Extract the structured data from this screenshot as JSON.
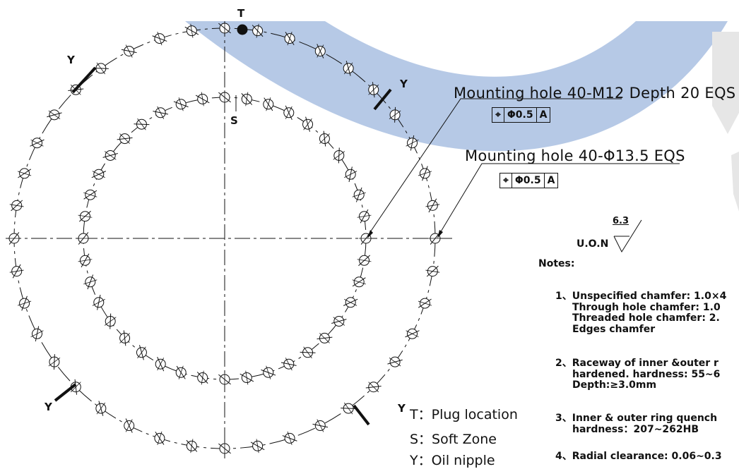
{
  "markers": {
    "plug": "T",
    "soft": "S",
    "nipple": "Y"
  },
  "callouts": [
    {
      "text": "Mounting hole 40-M12 Depth 20 EQS",
      "fcf": {
        "symbol": "⌖",
        "tolerance": "Φ0.5",
        "datum": "A"
      }
    },
    {
      "text": "Mounting hole 40-Φ13.5 EQS",
      "fcf": {
        "symbol": "⌖",
        "tolerance": "Φ0.5",
        "datum": "A"
      }
    }
  ],
  "surface_finish": {
    "prefix": "U.O.N",
    "value": "6.3"
  },
  "notes": {
    "heading": "Notes:",
    "items": [
      {
        "lines": [
          "1、Unspecified chamfer: 1.0×4",
          "Through hole chamfer: 1.0",
          "Threaded hole chamfer: 2.",
          "Edges chamfer"
        ]
      },
      {
        "lines": [
          "2、Raceway of inner &outer r",
          "hardened. hardness: 55~6",
          "Depth:≥3.0mm"
        ]
      },
      {
        "lines": [
          "3、Inner & outer ring quench",
          "hardness：207~262HB"
        ]
      },
      {
        "lines": [
          "4、Radial clearance: 0.06~0.3"
        ]
      }
    ]
  },
  "legend": [
    {
      "text": "T：Plug location"
    },
    {
      "text": "S：Soft Zone"
    },
    {
      "text": "Y：Oil nipple"
    }
  ],
  "colors": {
    "watermark": "#a9c0e2",
    "ink": "#111111",
    "watermark_grey": "#e6e6e6"
  },
  "drawing": {
    "outer_holes": 40,
    "inner_holes": 40
  }
}
